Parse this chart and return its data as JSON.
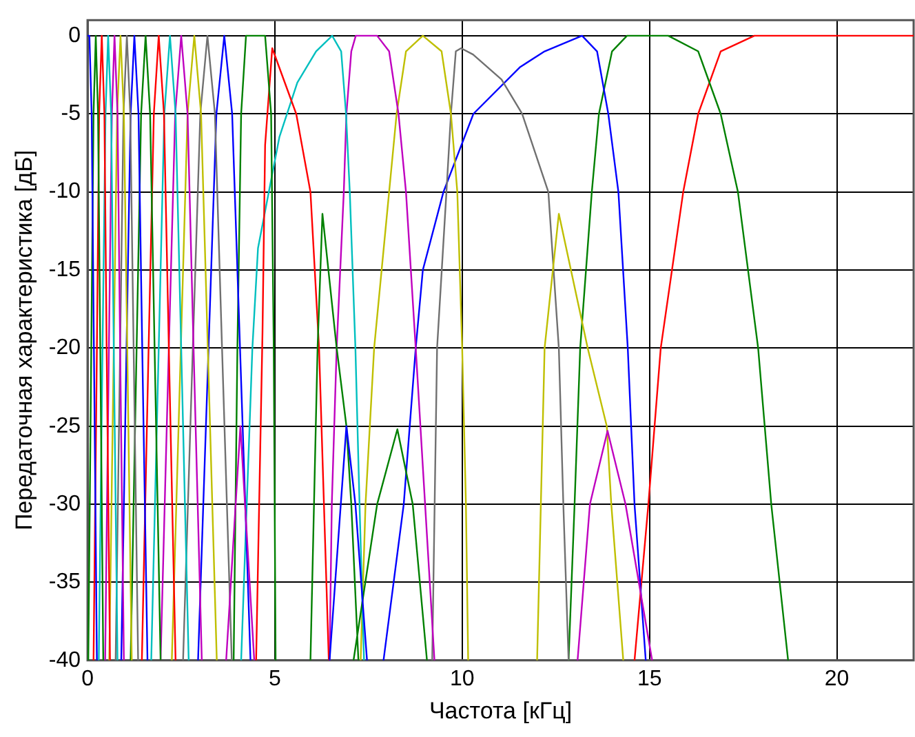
{
  "chart_data": {
    "type": "line",
    "xlabel": "Частота [кГц]",
    "ylabel": "Передаточная характеристика [дБ]",
    "xlim": [
      0,
      22.05
    ],
    "ylim": [
      -40,
      1
    ],
    "xticks": [
      0,
      5,
      10,
      15,
      20
    ],
    "yticks": [
      0,
      -5,
      -10,
      -15,
      -20,
      -25,
      -30,
      -35,
      -40
    ],
    "grid": true,
    "legend": false,
    "marker": "none",
    "line_style": "solid",
    "series": [
      {
        "color": "#0000ff",
        "x": [
          0,
          0.05,
          0.11,
          0.17,
          0.25
        ],
        "values": [
          0,
          0,
          -5,
          -20,
          -40
        ]
      },
      {
        "color": "#008000",
        "x": [
          0.02,
          0.1,
          0.16,
          0.22,
          0.28,
          0.34,
          0.42
        ],
        "values": [
          -40,
          -20,
          -5,
          0,
          -5,
          -20,
          -40
        ]
      },
      {
        "color": "#ff0000",
        "x": [
          0.16,
          0.25,
          0.31,
          0.38,
          0.45,
          0.51,
          0.6
        ],
        "values": [
          -40,
          -20,
          -5,
          0,
          -5,
          -20,
          -40
        ]
      },
      {
        "color": "#00bfbf",
        "x": [
          0.3,
          0.4,
          0.48,
          0.55,
          0.63,
          0.7,
          0.8
        ],
        "values": [
          -40,
          -20,
          -5,
          0,
          -5,
          -20,
          -40
        ]
      },
      {
        "color": "#bf00bf",
        "x": [
          0.47,
          0.57,
          0.65,
          0.72,
          0.8,
          0.87,
          0.97
        ],
        "values": [
          -40,
          -20,
          -5,
          0,
          -5,
          -20,
          -40
        ]
      },
      {
        "color": "#bfbf00",
        "x": [
          0.58,
          0.7,
          0.79,
          0.88,
          0.97,
          1.06,
          1.18
        ],
        "values": [
          -40,
          -20,
          -5,
          0,
          -5,
          -20,
          -40
        ]
      },
      {
        "color": "#707070",
        "x": [
          0.75,
          0.87,
          0.96,
          1.05,
          1.14,
          1.23,
          1.35
        ],
        "values": [
          -40,
          -20,
          -5,
          0,
          -5,
          -20,
          -40
        ]
      },
      {
        "color": "#0000ff",
        "x": [
          0.9,
          1.04,
          1.15,
          1.25,
          1.36,
          1.46,
          1.6
        ],
        "values": [
          -40,
          -20,
          -5,
          0,
          -5,
          -20,
          -40
        ]
      },
      {
        "color": "#008000",
        "x": [
          1.15,
          1.31,
          1.43,
          1.55,
          1.67,
          1.79,
          1.95
        ],
        "values": [
          -40,
          -20,
          -5,
          0,
          -5,
          -20,
          -40
        ]
      },
      {
        "color": "#ff0000",
        "x": [
          1.45,
          1.63,
          1.77,
          1.9,
          2.04,
          2.17,
          2.35
        ],
        "values": [
          -40,
          -20,
          -5,
          0,
          -5,
          -20,
          -40
        ]
      },
      {
        "color": "#00bfbf",
        "x": [
          1.7,
          1.9,
          2.05,
          2.2,
          2.35,
          2.5,
          2.7
        ],
        "values": [
          -40,
          -20,
          -5,
          0,
          -5,
          -20,
          -40
        ]
      },
      {
        "color": "#bf00bf",
        "x": [
          1.95,
          2.17,
          2.34,
          2.5,
          2.67,
          2.83,
          3.05,
          3.4,
          3.7,
          4.08,
          4.45
        ],
        "values": [
          -40,
          -20,
          -5,
          0,
          -5,
          -20,
          -40,
          null,
          -40,
          -25,
          -40
        ]
      },
      {
        "color": "#bfbf00",
        "x": [
          2.25,
          2.49,
          2.67,
          2.85,
          3.03,
          3.21,
          3.45
        ],
        "values": [
          -40,
          -20,
          -5,
          0,
          -5,
          -20,
          -40
        ]
      },
      {
        "color": "#707070",
        "x": [
          2.55,
          2.81,
          3.01,
          3.2,
          3.4,
          3.59,
          3.85
        ],
        "values": [
          -40,
          -20,
          -5,
          0,
          -5,
          -20,
          -40
        ]
      },
      {
        "color": "#0000ff",
        "x": [
          2.95,
          3.23,
          3.44,
          3.65,
          3.86,
          4.07,
          4.35,
          5.4,
          6.46,
          6.91,
          7.15,
          7.46
        ],
        "values": [
          -40,
          -20,
          -5,
          0,
          -5,
          -20,
          -40,
          null,
          -40,
          -25,
          -30,
          -40
        ]
      },
      {
        "color": "#008000",
        "x": [
          3.9,
          4.0,
          4.1,
          4.23,
          4.74,
          4.9,
          4.97,
          5.02,
          5.5,
          5.95,
          6.14,
          6.27,
          6.65,
          6.91,
          7.04,
          7.23,
          7.2,
          7.1,
          7.73,
          8.27,
          8.68,
          9.06
        ],
        "values": [
          -40,
          -20,
          -5,
          0,
          0,
          -5,
          -20,
          -40,
          null,
          -40,
          -20,
          -11.4,
          -20,
          -25,
          -30,
          -40,
          null,
          -40,
          -30,
          -25.2,
          -30,
          -40
        ]
      },
      {
        "color": "#ff0000",
        "x": [
          4.5,
          4.67,
          4.74,
          4.93,
          5.57,
          5.95,
          6.18,
          6.31,
          6.44
        ],
        "values": [
          -40,
          -19,
          -7,
          -0.8,
          -5,
          -10,
          -20,
          -30,
          -40
        ]
      },
      {
        "color": "#00bfbf",
        "x": [
          4.1,
          4.25,
          4.4,
          4.55,
          5.12,
          5.6,
          6.1,
          6.53,
          6.77,
          6.9,
          7.0,
          7.15,
          7.26,
          7.38
        ],
        "values": [
          -40,
          -30,
          -20,
          -13.6,
          -6.5,
          -3,
          -1,
          0,
          -1,
          -5,
          -10,
          -20,
          -30,
          -40
        ]
      },
      {
        "color": "#bf00bf",
        "x": [
          6.46,
          6.52,
          6.65,
          6.84,
          6.91,
          7.04,
          7.16,
          7.73,
          8.05,
          8.3,
          8.5,
          8.76,
          9.01,
          9.26,
          11,
          13.08,
          13.41,
          13.88,
          14.36,
          15.07
        ],
        "values": [
          -40,
          -30,
          -20,
          -10,
          -5,
          -1,
          0,
          0,
          -1,
          -5,
          -10,
          -20,
          -30,
          -40,
          null,
          -40,
          -30,
          -25.3,
          -30,
          -40
        ]
      },
      {
        "color": "#bfbf00",
        "x": [
          7.29,
          7.42,
          7.65,
          8.05,
          8.25,
          8.5,
          8.95,
          9.45,
          9.7,
          9.87,
          10.0,
          10.1,
          10.16,
          11,
          12.0,
          12.2,
          12.58,
          13.35,
          13.86,
          13.98,
          14.3
        ],
        "values": [
          -40,
          -30,
          -20,
          -10,
          -5,
          -1,
          0,
          -1,
          -5,
          -10,
          -20,
          -30,
          -40,
          null,
          -40,
          -20,
          -11.4,
          -20,
          -25,
          -30,
          -40
        ]
      },
      {
        "color": "#707070",
        "x": [
          9.2,
          9.33,
          9.58,
          9.7,
          9.83,
          9.97,
          10.29,
          11.05,
          11.6,
          12.3,
          12.58,
          12.7,
          12.84
        ],
        "values": [
          -40,
          -20,
          -10,
          -5,
          -1,
          -0.8,
          -1.2,
          -2.8,
          -5,
          -10,
          -20,
          -30,
          -40
        ]
      },
      {
        "color": "#0000ff",
        "x": [
          7.9,
          8.44,
          8.76,
          8.95,
          9.5,
          10.3,
          11.55,
          12.2,
          13.2,
          13.6,
          13.9,
          14.17,
          14.42,
          14.6,
          14.9
        ],
        "values": [
          -40,
          -30,
          -20,
          -15,
          -10,
          -5,
          -2,
          -1,
          0,
          -1,
          -5,
          -10,
          -20,
          -30,
          -40
        ]
      },
      {
        "color": "#008000",
        "x": [
          12.84,
          13.0,
          13.15,
          13.46,
          13.65,
          14.0,
          14.4,
          15.5,
          16.3,
          16.9,
          17.36,
          17.9,
          18.25,
          18.7
        ],
        "values": [
          -40,
          -30,
          -20,
          -10,
          -5,
          -1,
          0,
          0,
          -1,
          -5,
          -10,
          -20,
          -30,
          -40
        ]
      },
      {
        "color": "#ff0000",
        "x": [
          14.6,
          14.97,
          15.3,
          15.9,
          16.3,
          16.9,
          17.8,
          22.05
        ],
        "values": [
          -40,
          -30,
          -20,
          -10,
          -5,
          -1,
          0,
          0
        ]
      }
    ]
  }
}
